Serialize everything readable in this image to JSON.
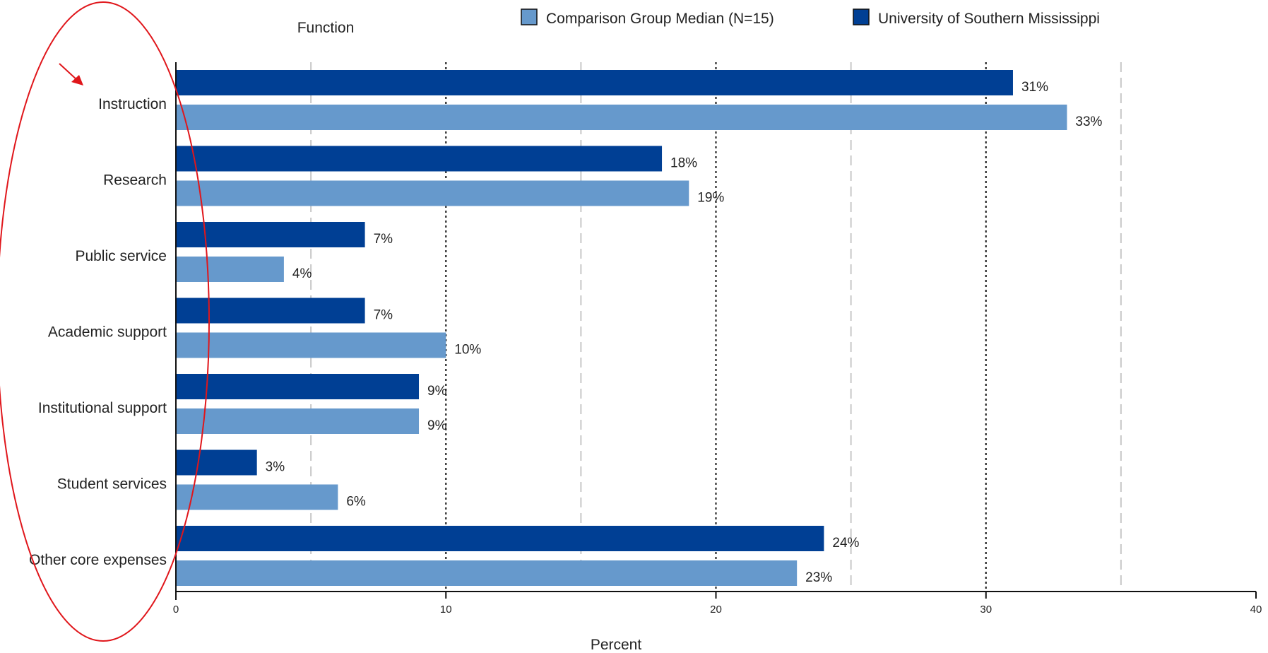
{
  "chart_data": {
    "type": "bar",
    "orientation": "horizontal",
    "title": "",
    "categories_header": "Function",
    "categories": [
      "Instruction",
      "Research",
      "Public service",
      "Academic support",
      "Institutional support",
      "Student services",
      "Other core expenses"
    ],
    "series": [
      {
        "name": "University of Southern Mississippi",
        "color": "#003F94",
        "values": [
          31,
          18,
          7,
          7,
          9,
          3,
          24
        ],
        "labels": [
          "31%",
          "18%",
          "7%",
          "7%",
          "9%",
          "3%",
          "24%"
        ]
      },
      {
        "name": "Comparison Group Median  (N=15)",
        "color": "#6699CC",
        "values": [
          33,
          19,
          4,
          10,
          9,
          6,
          23
        ],
        "labels": [
          "33%",
          "19%",
          "4%",
          "10%",
          "9%",
          "6%",
          "23%"
        ]
      }
    ],
    "legend_order": [
      1,
      0
    ],
    "legend_position": "top",
    "xlabel": "Percent",
    "xlim": [
      0,
      40
    ],
    "xticks": [
      0,
      10,
      20,
      30,
      40
    ],
    "grid_major": [
      10,
      20,
      30
    ],
    "grid_minor": [
      5,
      15,
      25,
      35
    ],
    "grid": true
  },
  "annotations": {
    "ellipse_color": "#E0161B",
    "arrow_color": "#E0161B"
  }
}
